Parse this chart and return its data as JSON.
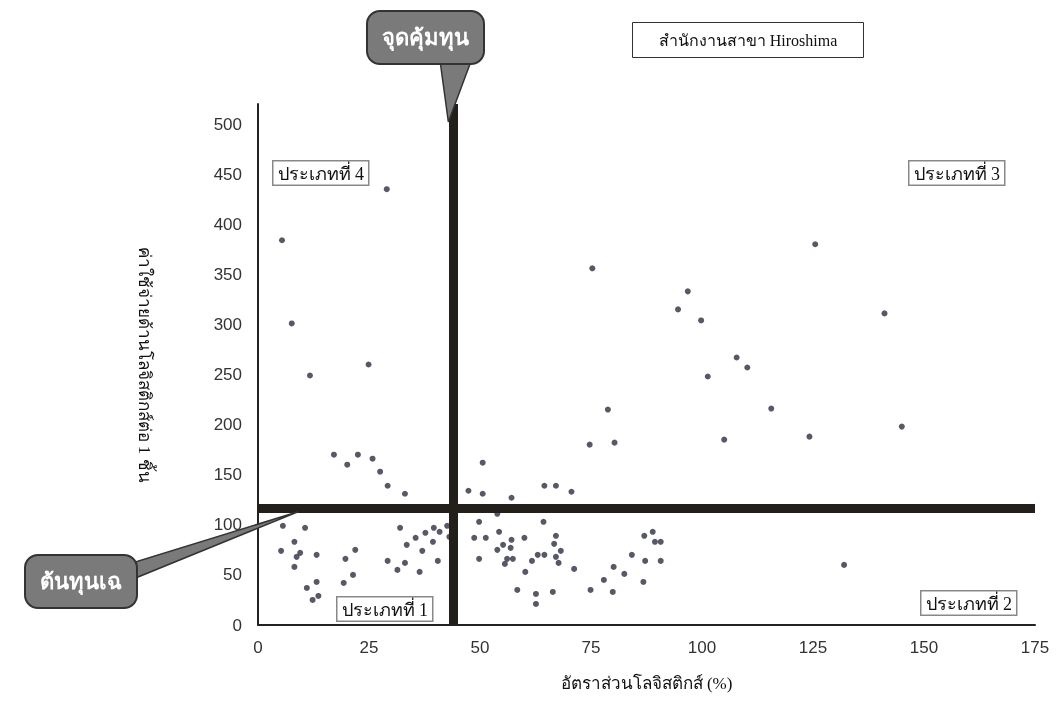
{
  "chart_data": {
    "type": "scatter",
    "title": "สำนักงานสาขา Hiroshima",
    "xlabel": "อัตราส่วนโลจิสติกส์ (%)",
    "ylabel": "ค่าใช้จ่ายด้านโลจิสติกส์ต่อ 1 ชิ้น",
    "x": [
      29,
      5.4,
      7.6,
      24.9,
      11.7,
      17.1,
      20.1,
      22.5,
      25.8,
      27.5,
      29.2,
      33.1,
      5.6,
      10.6,
      8.2,
      5.2,
      9.5,
      8.7,
      13.2,
      8.2,
      11,
      13.2,
      12.3,
      13.6,
      19.7,
      21.9,
      21.4,
      19.3,
      32,
      33.5,
      35.5,
      37.7,
      39.6,
      40.9,
      39.4,
      37,
      29.2,
      33.1,
      31.4,
      36.4,
      40.5,
      42.6,
      43.1,
      101.3,
      78.8,
      74.7,
      80.3,
      105,
      50.6,
      47.4,
      50.6,
      57.1,
      64.5,
      67.1,
      70.6,
      53.9,
      49.8,
      64.3,
      48.7,
      51.3,
      54.3,
      55.2,
      57.1,
      53.9,
      56.9,
      60,
      49.8,
      56.1,
      57.4,
      55.6,
      60.2,
      61.7,
      63,
      64.5,
      67.1,
      66.7,
      68.2,
      67.1,
      67.7,
      71.2,
      58.4,
      62.6,
      62.6,
      66.4,
      74.9,
      79.9,
      77.9,
      80.1,
      82.5,
      84.2,
      87,
      88.9,
      89.4,
      90.7,
      87.2,
      90.7,
      86.8,
      125.5,
      75.3,
      96.8,
      94.6,
      99.8,
      141.1,
      107.8,
      110.2,
      115.6,
      145,
      124.2,
      132
    ],
    "values": [
      435,
      384,
      301,
      260,
      249,
      170,
      160,
      170,
      166,
      153,
      139,
      131,
      99,
      97,
      83,
      74,
      72,
      68,
      70,
      58,
      37,
      43,
      25,
      29,
      66,
      75,
      50,
      42,
      97,
      80,
      87,
      92,
      97,
      93,
      83,
      74,
      64,
      62,
      55,
      53,
      64,
      99,
      88,
      248,
      215,
      180,
      182,
      185,
      162,
      134,
      131,
      127,
      139,
      139,
      133,
      111,
      103,
      103,
      87,
      87,
      93,
      80,
      85,
      75,
      77,
      87,
      66,
      66,
      66,
      61,
      53,
      64,
      70,
      70,
      89,
      81,
      74,
      68,
      62,
      56,
      35,
      31,
      21,
      33,
      35,
      33,
      45,
      58,
      51,
      70,
      89,
      93,
      83,
      83,
      64,
      64,
      43,
      380,
      356,
      333,
      315,
      304,
      311,
      267,
      257,
      216,
      198,
      188,
      60
    ],
    "color": "#2e3040",
    "marker": "circle",
    "xlim": [
      0,
      175
    ],
    "xticks": [
      0,
      25,
      50,
      75,
      100,
      125,
      150,
      175
    ],
    "ylim": [
      0,
      520
    ],
    "yticks": [
      0,
      50,
      100,
      150,
      200,
      250,
      300,
      350,
      400,
      450,
      500
    ],
    "grid": false,
    "ref_lines": [
      {
        "axis": "x",
        "value": 44,
        "label": "จุดคุ้มทุน",
        "color": "#231f1a"
      },
      {
        "axis": "y",
        "value": 117,
        "label": "ต้นทุนเฉ",
        "color": "#231f1a"
      }
    ],
    "annotations": [
      "ประเภทที่ 4",
      "ประเภทที่ 3",
      "ประเภทที่ 1",
      "ประเภทที่ 2"
    ]
  }
}
